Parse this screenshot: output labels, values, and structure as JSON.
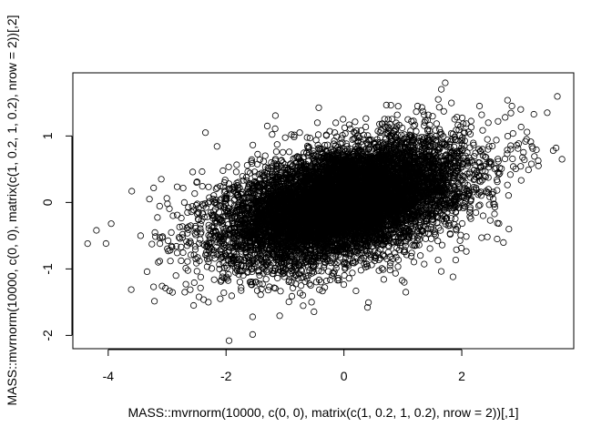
{
  "chart_data": {
    "type": "scatter",
    "title": "",
    "xlabel": "MASS::mvrnorm(10000, c(0, 0), matrix(c(1, 0.2, 1, 0.2), nrow = 2))[,1]",
    "ylabel": "MASS::mvrnorm(10000, c(0, 0), matrix(c(1, 0.2, 1, 0.2), nrow = 2))[,2]",
    "xlim": [
      -4.6,
      3.9
    ],
    "ylim": [
      -2.2,
      1.95
    ],
    "x_ticks": [
      -4,
      -2,
      0,
      2
    ],
    "y_ticks": [
      -2,
      -1,
      0,
      1
    ],
    "x_tick_labels": [
      "-4",
      "-2",
      "0",
      "2"
    ],
    "y_tick_labels": [
      "-2",
      "-1",
      "0",
      "1"
    ],
    "grid": false,
    "legend": "none",
    "marker": "open-circle",
    "point_color": "#000000",
    "n_points": 10000,
    "generator": {
      "mean": [
        0,
        0
      ],
      "sd": [
        1,
        0.447
      ],
      "correlation": 0.447
    },
    "points": [
      [
        -4.35,
        -0.62
      ],
      [
        -4.2,
        -0.42
      ],
      [
        -3.95,
        -0.32
      ],
      [
        -3.6,
        0.17
      ],
      [
        -3.45,
        -0.5
      ],
      [
        -3.3,
        0.05
      ],
      [
        -3.15,
        -0.9
      ],
      [
        -3.1,
        0.35
      ],
      [
        -2.95,
        -0.72
      ],
      [
        -2.85,
        -1.1
      ],
      [
        -2.7,
        -1.35
      ],
      [
        -2.55,
        -1.55
      ],
      [
        -2.35,
        1.05
      ],
      [
        -2.3,
        -1.5
      ],
      [
        -2.1,
        -1.45
      ],
      [
        -1.95,
        -2.08
      ],
      [
        -1.55,
        -1.72
      ],
      [
        -1.5,
        -1.2
      ],
      [
        -1.4,
        -1.3
      ],
      [
        -1.3,
        1.15
      ],
      [
        -0.75,
        1.05
      ],
      [
        -0.55,
        -1.5
      ],
      [
        -0.45,
        1.2
      ],
      [
        0.4,
        -1.58
      ],
      [
        0.75,
        1.25
      ],
      [
        1.05,
        -1.35
      ],
      [
        1.25,
        1.45
      ],
      [
        1.6,
        1.55
      ],
      [
        1.72,
        1.8
      ],
      [
        1.85,
        -1.12
      ],
      [
        2.3,
        1.45
      ],
      [
        2.85,
        1.45
      ],
      [
        3.0,
        1.4
      ],
      [
        3.3,
        0.55
      ],
      [
        3.45,
        1.35
      ],
      [
        3.55,
        0.78
      ],
      [
        3.6,
        0.82
      ],
      [
        3.7,
        0.65
      ],
      [
        2.6,
        -0.55
      ],
      [
        2.8,
        -0.4
      ],
      [
        3.1,
        0.95
      ],
      [
        2.45,
        1.2
      ],
      [
        -2.5,
        0.3
      ],
      [
        -2.6,
        -0.35
      ],
      [
        -2.9,
        -0.2
      ]
    ]
  }
}
